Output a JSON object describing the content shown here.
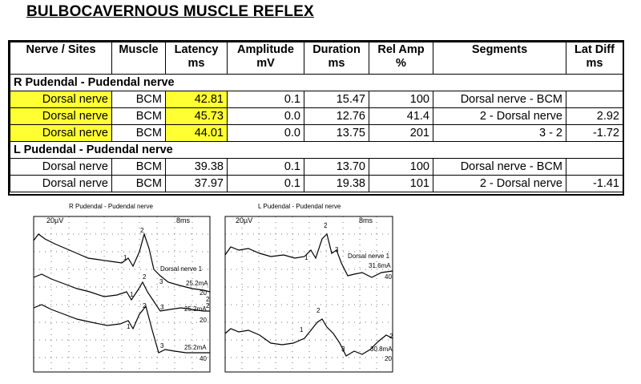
{
  "title": "BULBOCAVERNOUS MUSCLE REFLEX",
  "table": {
    "headers": [
      {
        "line1": "Nerve / Sites",
        "line2": ""
      },
      {
        "line1": "Muscle",
        "line2": ""
      },
      {
        "line1": "Latency",
        "line2": "ms"
      },
      {
        "line1": "Amplitude",
        "line2": "mV"
      },
      {
        "line1": "Duration",
        "line2": "ms"
      },
      {
        "line1": "Rel Amp",
        "line2": "%"
      },
      {
        "line1": "Segments",
        "line2": ""
      },
      {
        "line1": "Lat Diff",
        "line2": "ms"
      }
    ],
    "sections": [
      {
        "name": "R Pudendal - Pudendal nerve",
        "rows": [
          {
            "site": "Dorsal nerve",
            "muscle": "BCM",
            "latency": "42.81",
            "amplitude": "0.1",
            "duration": "15.47",
            "rel_amp": "100",
            "segment": "Dorsal nerve - BCM",
            "lat_diff": ""
          },
          {
            "site": "Dorsal nerve",
            "muscle": "BCM",
            "latency": "45.73",
            "amplitude": "0.0",
            "duration": "12.76",
            "rel_amp": "41.4",
            "segment": "2 - Dorsal nerve",
            "lat_diff": "2.92"
          },
          {
            "site": "Dorsal nerve",
            "muscle": "BCM",
            "latency": "44.01",
            "amplitude": "0.0",
            "duration": "13.75",
            "rel_amp": "201",
            "segment": "3 - 2",
            "lat_diff": "-1.72"
          }
        ]
      },
      {
        "name": "L Pudendal - Pudendal nerve",
        "rows": [
          {
            "site": "Dorsal nerve",
            "muscle": "BCM",
            "latency": "39.38",
            "amplitude": "0.1",
            "duration": "13.70",
            "rel_amp": "100",
            "segment": "Dorsal nerve - BCM",
            "lat_diff": ""
          },
          {
            "site": "Dorsal nerve",
            "muscle": "BCM",
            "latency": "37.97",
            "amplitude": "0.1",
            "duration": "19.38",
            "rel_amp": "101",
            "segment": "2 - Dorsal nerve",
            "lat_diff": "-1.41"
          }
        ]
      }
    ]
  },
  "highlight_color": "#ffff33",
  "panels": {
    "right": {
      "title": "R Pudendal - Pudendal nerve",
      "gain": "20µV",
      "sweep": "8ms",
      "site_label": "Dorsal nerve 1",
      "trace1": {
        "intensity": "25.2mA",
        "num": "20",
        "markers": [
          "1",
          "2",
          "3"
        ]
      },
      "trace2": {
        "intensity": "25.2mA",
        "num": "20",
        "markers": [
          "1",
          "2",
          "3"
        ]
      },
      "trace3": {
        "intensity": "25.2mA",
        "num": "40",
        "markers": [
          "1",
          "2",
          "3"
        ]
      },
      "side_nums": [
        "2",
        "2"
      ]
    },
    "left": {
      "title": "L Pudendal - Pudendal nerve",
      "gain": "20µV",
      "sweep": "8ms",
      "site_label": "Dorsal nerve 1",
      "trace1": {
        "intensity": "31.6mA",
        "num": "40",
        "markers": [
          "1",
          "2",
          "3"
        ]
      },
      "trace2": {
        "intensity": "30.8mA",
        "num": "20",
        "markers": [
          "1",
          "2",
          "3"
        ]
      },
      "side_nums": [
        "2"
      ]
    }
  }
}
